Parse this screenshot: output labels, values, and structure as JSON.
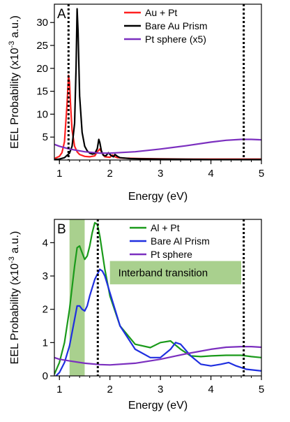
{
  "chart_data": [
    {
      "panel_label": "A",
      "type": "line",
      "xlabel": "Energy (eV)",
      "ylabel": "EEL Probability (x10",
      "ylabel_sup": "-3",
      "ylabel_unit": " a.u.)",
      "xlim": [
        0.9,
        5.0
      ],
      "ylim": [
        0,
        34
      ],
      "xticks": [
        1,
        2,
        3,
        4,
        5
      ],
      "yticks": [
        5,
        10,
        15,
        20,
        25,
        30
      ],
      "vlines": [
        1.18,
        4.65
      ],
      "legend_position": "top-right",
      "series": [
        {
          "name": "Au + Pt",
          "color": "#ff2020",
          "x": [
            0.9,
            1.0,
            1.05,
            1.1,
            1.15,
            1.18,
            1.2,
            1.22,
            1.25,
            1.3,
            1.35,
            1.4,
            1.5,
            1.6,
            1.7,
            1.75,
            1.8,
            1.85,
            1.9,
            2.0,
            2.05,
            2.1,
            2.15,
            2.3,
            2.6,
            3.0,
            3.5,
            4.0,
            4.5,
            5.0
          ],
          "y": [
            0.3,
            0.8,
            1.6,
            4.0,
            12.0,
            18.5,
            17.0,
            12.0,
            6.5,
            3.0,
            1.8,
            1.2,
            0.8,
            0.7,
            0.9,
            1.8,
            2.4,
            1.4,
            0.7,
            0.6,
            1.1,
            0.7,
            0.5,
            0.4,
            0.3,
            0.25,
            0.2,
            0.2,
            0.2,
            0.2
          ]
        },
        {
          "name": "Bare Au Prism",
          "color": "#000000",
          "x": [
            0.9,
            1.0,
            1.1,
            1.2,
            1.25,
            1.3,
            1.33,
            1.35,
            1.37,
            1.4,
            1.45,
            1.5,
            1.55,
            1.6,
            1.65,
            1.7,
            1.75,
            1.78,
            1.8,
            1.83,
            1.87,
            1.92,
            1.97,
            2.02,
            2.07,
            2.1,
            2.15,
            2.2,
            2.4,
            2.6,
            3.0,
            3.5,
            4.0,
            4.5,
            5.0
          ],
          "y": [
            0.1,
            0.2,
            0.5,
            1.5,
            3.0,
            8.0,
            20.0,
            33.0,
            28.0,
            14.0,
            6.0,
            3.0,
            2.0,
            1.5,
            1.3,
            1.4,
            2.5,
            4.5,
            3.8,
            2.0,
            1.0,
            0.9,
            1.6,
            1.0,
            0.7,
            1.2,
            0.8,
            0.5,
            0.3,
            0.25,
            0.2,
            0.15,
            0.1,
            0.1,
            0.1
          ]
        },
        {
          "name": "Pt sphere (x5)",
          "color": "#7b2fbf",
          "x": [
            0.9,
            1.0,
            1.2,
            1.5,
            1.8,
            2.0,
            2.5,
            3.0,
            3.5,
            4.0,
            4.3,
            4.6,
            4.8,
            5.0
          ],
          "y": [
            3.4,
            3.0,
            2.4,
            1.8,
            1.5,
            1.5,
            1.8,
            2.4,
            3.1,
            3.9,
            4.3,
            4.5,
            4.5,
            4.4
          ]
        }
      ]
    },
    {
      "panel_label": "B",
      "type": "line",
      "xlabel": "Energy (eV)",
      "ylabel": "EEL Probability (x10",
      "ylabel_sup": "-3",
      "ylabel_unit": " a.u.)",
      "xlim": [
        0.9,
        5.0
      ],
      "ylim": [
        0,
        4.7
      ],
      "xticks": [
        1,
        2,
        3,
        4,
        5
      ],
      "yticks": [
        0,
        1,
        2,
        3,
        4
      ],
      "vlines": [
        1.76,
        4.65
      ],
      "shaded_band": {
        "x0": 1.2,
        "x1": 1.5,
        "color": "#a9d08e"
      },
      "annotation": {
        "text": "Interband transition",
        "x0": 2.0,
        "x1": 4.6,
        "y0": 2.75,
        "y1": 3.45,
        "color": "#a9d08e"
      },
      "legend_position": "top-right",
      "series": [
        {
          "name": "Al + Pt",
          "color": "#1a9a1a",
          "x": [
            0.9,
            1.0,
            1.1,
            1.2,
            1.3,
            1.35,
            1.4,
            1.45,
            1.5,
            1.55,
            1.6,
            1.65,
            1.7,
            1.75,
            1.8,
            1.85,
            1.9,
            2.0,
            2.2,
            2.5,
            2.8,
            3.0,
            3.2,
            3.4,
            3.6,
            3.8,
            4.0,
            4.3,
            4.6,
            4.8,
            5.0
          ],
          "y": [
            0.05,
            0.4,
            1.0,
            2.0,
            3.3,
            3.85,
            3.9,
            3.7,
            3.5,
            3.6,
            3.9,
            4.3,
            4.6,
            4.55,
            4.2,
            3.7,
            3.2,
            2.4,
            1.5,
            0.95,
            0.85,
            1.0,
            1.05,
            0.8,
            0.6,
            0.58,
            0.6,
            0.62,
            0.62,
            0.58,
            0.55
          ]
        },
        {
          "name": "Bare Al Prism",
          "color": "#1f2fe0",
          "x": [
            0.9,
            1.0,
            1.1,
            1.2,
            1.3,
            1.35,
            1.4,
            1.45,
            1.5,
            1.55,
            1.6,
            1.7,
            1.8,
            1.85,
            1.9,
            2.0,
            2.2,
            2.5,
            2.8,
            3.0,
            3.2,
            3.3,
            3.4,
            3.6,
            3.8,
            4.0,
            4.2,
            4.35,
            4.5,
            4.7,
            5.0
          ],
          "y": [
            -0.05,
            0.1,
            0.4,
            0.9,
            1.7,
            2.1,
            2.1,
            2.0,
            1.95,
            2.1,
            2.4,
            2.9,
            3.2,
            3.15,
            3.0,
            2.5,
            1.5,
            0.8,
            0.55,
            0.55,
            0.8,
            1.0,
            0.95,
            0.6,
            0.35,
            0.3,
            0.35,
            0.4,
            0.3,
            0.2,
            0.15
          ]
        },
        {
          "name": "Pt sphere",
          "color": "#7b2fbf",
          "x": [
            0.9,
            1.0,
            1.2,
            1.5,
            1.8,
            2.0,
            2.5,
            3.0,
            3.5,
            4.0,
            4.3,
            4.6,
            4.8,
            5.0
          ],
          "y": [
            0.55,
            0.5,
            0.45,
            0.38,
            0.34,
            0.33,
            0.38,
            0.5,
            0.66,
            0.8,
            0.86,
            0.88,
            0.88,
            0.86
          ]
        }
      ]
    }
  ]
}
